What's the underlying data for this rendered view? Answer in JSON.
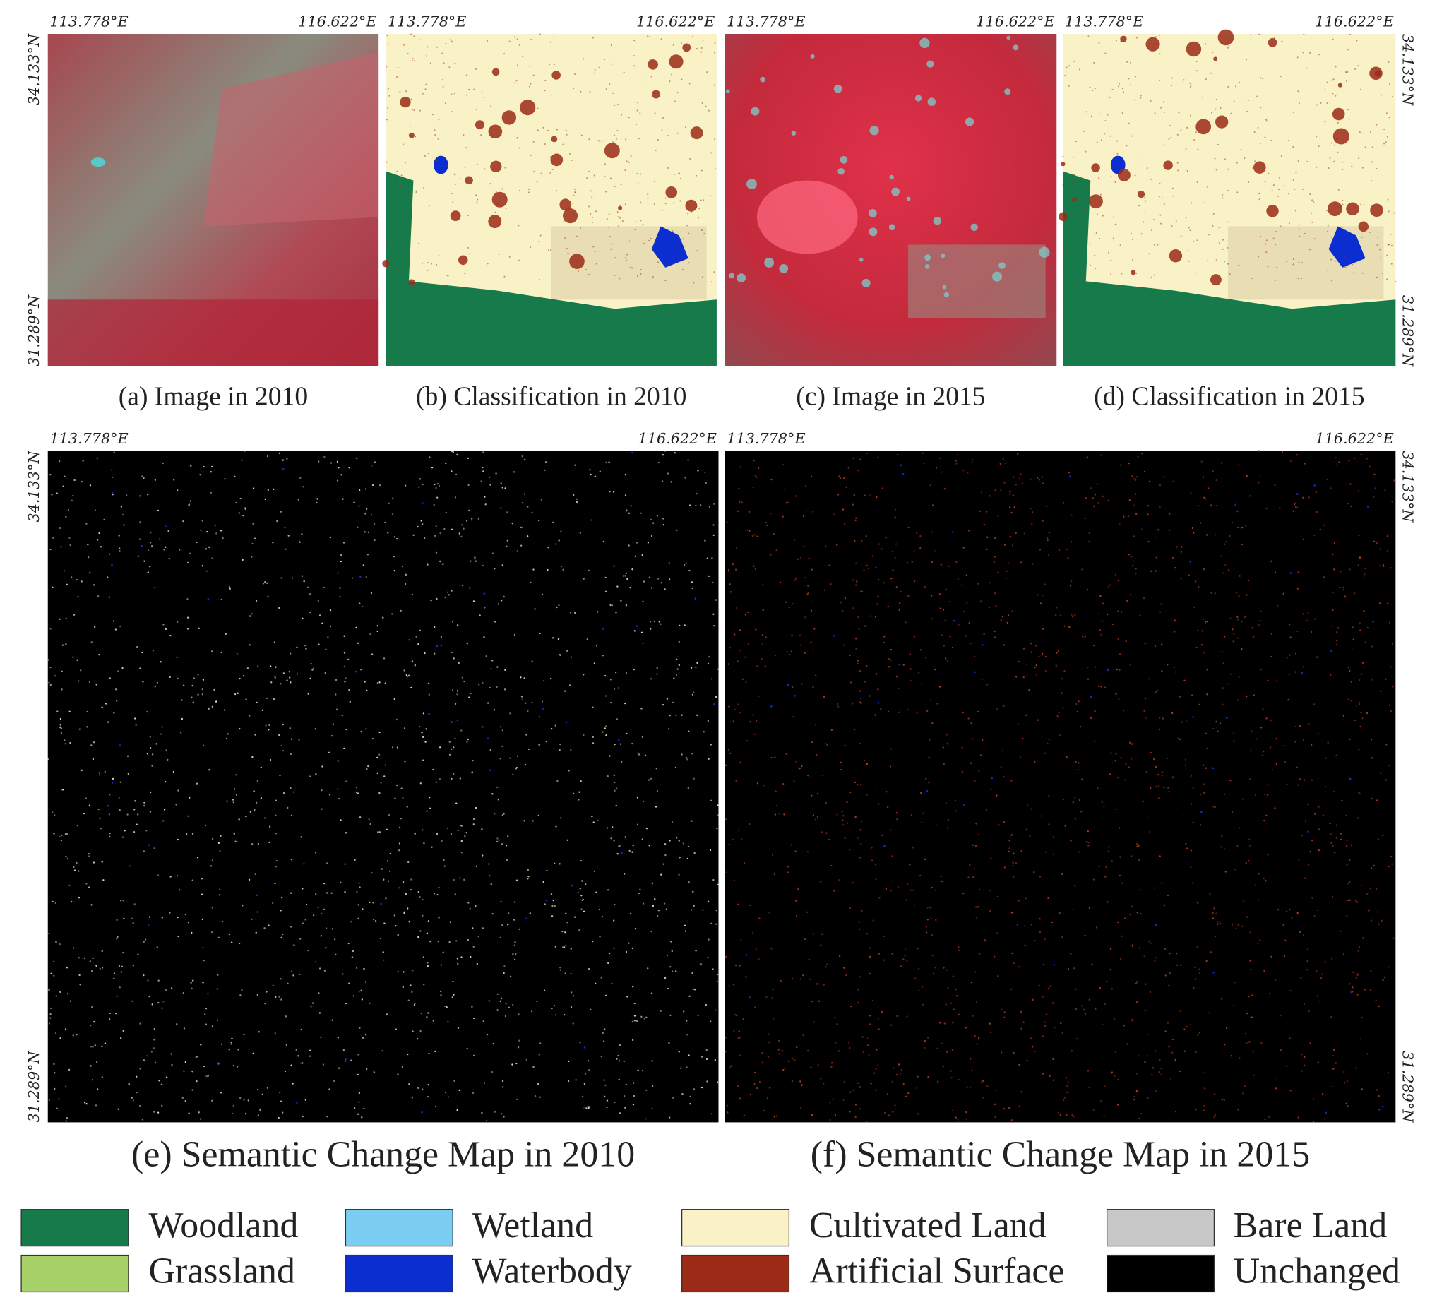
{
  "panels": [
    {
      "caption": "(a) Image in 2010",
      "lon_left": "113.778°E",
      "lon_right": "116.622°E",
      "lat_top": "34.133°N",
      "lat_bottom": "31.289°N"
    },
    {
      "caption": "(b) Classification in 2010",
      "lon_left": "113.778°E",
      "lon_right": "116.622°E"
    },
    {
      "caption": "(c) Image in 2015",
      "lon_left": "113.778°E",
      "lon_right": "116.622°E"
    },
    {
      "caption": "(d) Classification in 2015",
      "lon_left": "113.778°E",
      "lon_right": "116.622°E",
      "lat_top": "34.133°N",
      "lat_bottom": "31.289°N"
    },
    {
      "caption": "(e) Semantic Change Map in 2010",
      "lon_left": "113.778°E",
      "lon_right": "116.622°E",
      "lat_top": "34.133°N",
      "lat_bottom": "31.289°N"
    },
    {
      "caption": "(f) Semantic Change Map in 2015",
      "lon_left": "113.778°E",
      "lon_right": "116.622°E",
      "lat_top": "34.133°N",
      "lat_bottom": "31.289°N"
    }
  ],
  "legend": [
    {
      "label": "Woodland",
      "color": "#167a4b"
    },
    {
      "label": "Wetland",
      "color": "#7ccdf2"
    },
    {
      "label": "Cultivated Land",
      "color": "#f8f2c6"
    },
    {
      "label": "Bare Land",
      "color": "#c8c8c8"
    },
    {
      "label": "Grassland",
      "color": "#a9d16a"
    },
    {
      "label": "Waterbody",
      "color": "#0a2ecf"
    },
    {
      "label": "Artificial Surface",
      "color": "#9b2b17"
    },
    {
      "label": "Unchanged",
      "color": "#000000"
    }
  ]
}
